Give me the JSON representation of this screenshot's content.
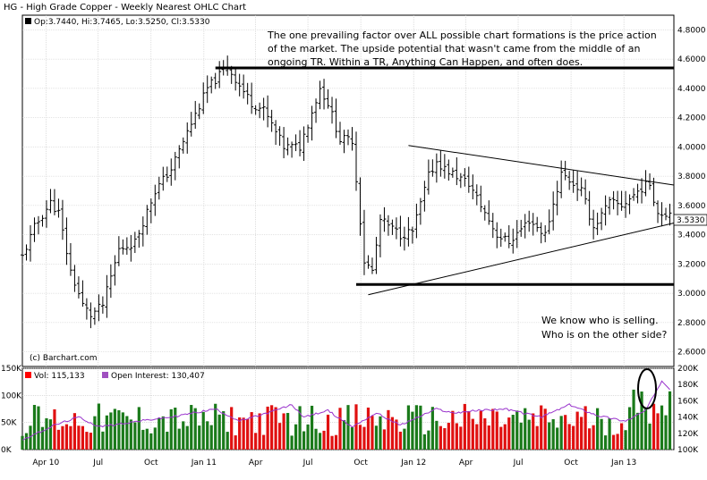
{
  "colors": {
    "ohlc": "#000000",
    "volume_up": "#1a7a1a",
    "volume_down": "#e01010",
    "open_interest": "#9933cc",
    "grid": "#c8c8c8",
    "legend_volume": "#ff0000",
    "legend_oi": "#a050c0"
  },
  "chart_data": [
    {
      "type": "ohlc",
      "title": "HG - High Grade Copper - Weekly Nearest OHLC Chart",
      "legend": "Op:3.7440, Hi:3.7465, Lo:3.5250, Cl:3.5330",
      "credit": "(c) Barchart.com",
      "last_price_label": "3.5330",
      "ylim": [
        2.5,
        4.9
      ],
      "y_ticks": [
        "4.8000",
        "4.6000",
        "4.4000",
        "4.2000",
        "4.0000",
        "3.8000",
        "3.6000",
        "3.4000",
        "3.2000",
        "3.0000",
        "2.8000",
        "2.6000"
      ],
      "x_ticks": [
        "Apr 10",
        "Jul",
        "Oct",
        "Jan 11",
        "Apr",
        "Jul",
        "Oct",
        "Jan 12",
        "Apr",
        "Jul",
        "Oct",
        "Jan 13"
      ],
      "x_range": [
        "2010-02-19",
        "2013-03-29"
      ],
      "anchors": [
        [
          "2010-02-19",
          3.25
        ],
        [
          "2010-03-12",
          3.45
        ],
        [
          "2010-04-09",
          3.62
        ],
        [
          "2010-04-23",
          3.55
        ],
        [
          "2010-05-14",
          3.15
        ],
        [
          "2010-06-04",
          2.92
        ],
        [
          "2010-06-18",
          2.85
        ],
        [
          "2010-07-09",
          2.92
        ],
        [
          "2010-08-06",
          3.3
        ],
        [
          "2010-09-03",
          3.35
        ],
        [
          "2010-10-08",
          3.7
        ],
        [
          "2010-11-05",
          3.85
        ],
        [
          "2010-12-03",
          4.1
        ],
        [
          "2011-01-07",
          4.4
        ],
        [
          "2011-02-11",
          4.55
        ],
        [
          "2011-03-04",
          4.42
        ],
        [
          "2011-03-25",
          4.3
        ],
        [
          "2011-04-15",
          4.25
        ],
        [
          "2011-05-20",
          4.0
        ],
        [
          "2011-06-17",
          4.0
        ],
        [
          "2011-07-22",
          4.4
        ],
        [
          "2011-08-05",
          4.3
        ],
        [
          "2011-08-26",
          4.05
        ],
        [
          "2011-09-16",
          4.05
        ],
        [
          "2011-10-07",
          3.22
        ],
        [
          "2011-10-21",
          3.15
        ],
        [
          "2011-11-04",
          3.5
        ],
        [
          "2011-12-09",
          3.4
        ],
        [
          "2011-12-30",
          3.42
        ],
        [
          "2012-01-27",
          3.8
        ],
        [
          "2012-02-10",
          3.9
        ],
        [
          "2012-02-24",
          3.85
        ],
        [
          "2012-04-06",
          3.75
        ],
        [
          "2012-05-04",
          3.55
        ],
        [
          "2012-05-25",
          3.4
        ],
        [
          "2012-06-15",
          3.35
        ],
        [
          "2012-07-20",
          3.5
        ],
        [
          "2012-08-17",
          3.4
        ],
        [
          "2012-09-14",
          3.82
        ],
        [
          "2012-10-19",
          3.7
        ],
        [
          "2012-11-09",
          3.45
        ],
        [
          "2012-12-07",
          3.62
        ],
        [
          "2012-12-28",
          3.6
        ],
        [
          "2013-02-01",
          3.72
        ],
        [
          "2013-02-15",
          3.75
        ],
        [
          "2013-03-01",
          3.55
        ],
        [
          "2013-03-15",
          3.55
        ]
      ],
      "annotations": [
        {
          "text": "The one prevailing factor over ALL possible chart formations is the price action",
          "where": "top-right"
        },
        {
          "text": "of the market.  The upside potential that wasn't came from the middle of an",
          "where": "top-right"
        },
        {
          "text": "ongoing TR.  Within a TR, Anything Can Happen, and often does.",
          "where": "top-right"
        },
        {
          "text": "We know who is selling.",
          "where": "bottom-right"
        },
        {
          "text": "Who is on the other side?",
          "where": "bottom-right"
        }
      ],
      "lines": [
        {
          "kind": "resistance",
          "from": [
            "2011-01-21",
            4.54
          ],
          "to": [
            "2013-03-29",
            4.54
          ]
        },
        {
          "kind": "support",
          "from": [
            "2011-09-23",
            3.06
          ],
          "to": [
            "2013-03-29",
            3.06
          ]
        },
        {
          "kind": "triangle-upper",
          "from": [
            "2011-12-23",
            4.01
          ],
          "to": [
            "2013-03-29",
            3.74
          ]
        },
        {
          "kind": "triangle-lower",
          "from": [
            "2011-10-14",
            2.99
          ],
          "to": [
            "2013-03-29",
            3.48
          ]
        }
      ]
    },
    {
      "type": "bar",
      "legend_volume": "Vol: 115,133",
      "legend_oi": "Open Interest: 130,407",
      "ylim_volume": [
        0,
        150000
      ],
      "left_ticks": [
        "150K",
        "100K",
        "50K",
        "0K"
      ],
      "ylim_open_interest": [
        100000,
        200000
      ],
      "right_ticks": [
        "200K",
        "180K",
        "160K",
        "140K",
        "120K",
        "100K"
      ],
      "volume_range": [
        25000,
        100000
      ],
      "open_interest_anchors": [
        [
          "2010-02-19",
          112000
        ],
        [
          "2010-04-16",
          130000
        ],
        [
          "2010-05-28",
          140000
        ],
        [
          "2010-07-02",
          128000
        ],
        [
          "2010-09-10",
          135000
        ],
        [
          "2010-11-05",
          140000
        ],
        [
          "2011-01-21",
          150000
        ],
        [
          "2011-03-04",
          135000
        ],
        [
          "2011-04-22",
          145000
        ],
        [
          "2011-06-03",
          155000
        ],
        [
          "2011-06-24",
          140000
        ],
        [
          "2011-08-05",
          148000
        ],
        [
          "2011-09-16",
          128000
        ],
        [
          "2011-10-28",
          145000
        ],
        [
          "2011-12-09",
          130000
        ],
        [
          "2012-02-10",
          150000
        ],
        [
          "2012-03-09",
          145000
        ],
        [
          "2012-04-20",
          148000
        ],
        [
          "2012-06-08",
          150000
        ],
        [
          "2012-08-10",
          140000
        ],
        [
          "2012-09-28",
          155000
        ],
        [
          "2012-11-16",
          142000
        ],
        [
          "2013-01-04",
          135000
        ],
        [
          "2013-02-08",
          148000
        ],
        [
          "2013-03-08",
          185000
        ],
        [
          "2013-03-22",
          175000
        ]
      ],
      "highlight": "ellipse around final volume spike"
    }
  ]
}
